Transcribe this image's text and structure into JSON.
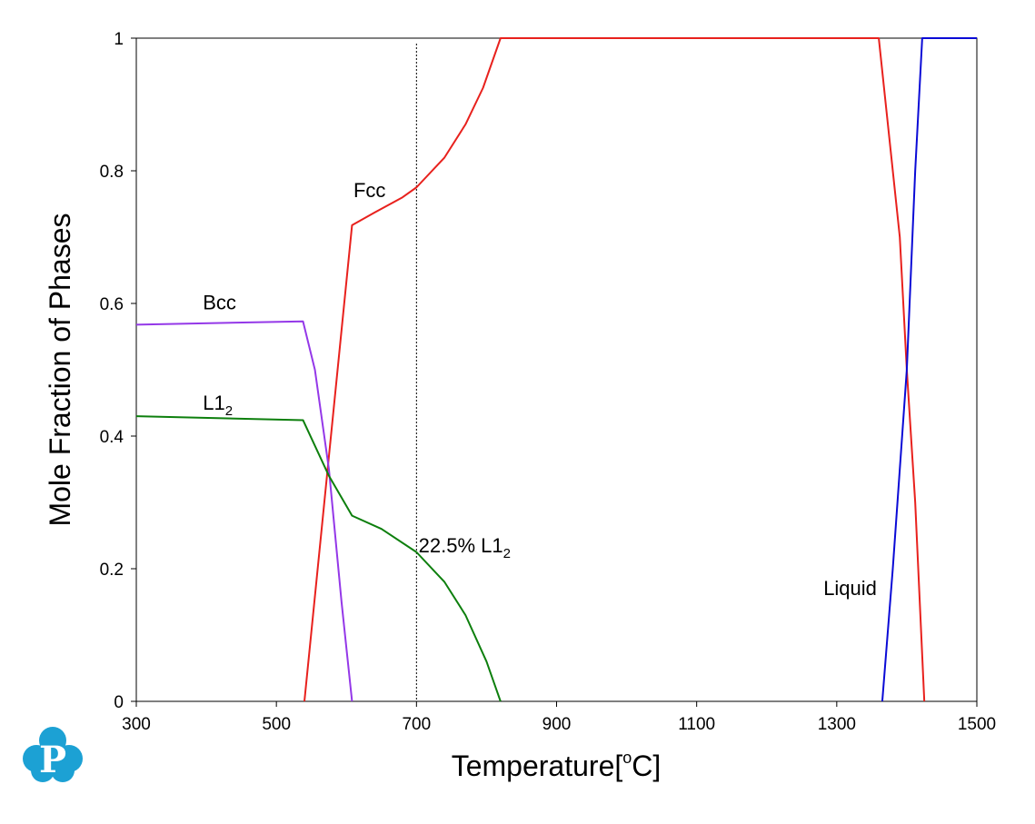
{
  "chart_data": {
    "type": "line",
    "title": "",
    "xlabel": "Temperature[°C]",
    "xlabel_parts": {
      "main": "Temperature[",
      "sup": "o",
      "end": "C]"
    },
    "ylabel": "Mole Fraction of Phases",
    "xlim": [
      300,
      1500
    ],
    "ylim": [
      0,
      1
    ],
    "x_ticks": [
      300,
      500,
      700,
      900,
      1100,
      1300,
      1500
    ],
    "x_tick_labels": [
      "300",
      "500",
      "700",
      "900",
      "1100",
      "1300",
      "1500"
    ],
    "y_ticks": [
      0,
      0.2,
      0.4,
      0.6,
      0.8,
      1
    ],
    "y_tick_labels": [
      "0",
      "0.2",
      "0.4",
      "0.6",
      "0.8",
      "1"
    ],
    "grid": false,
    "series": [
      {
        "name": "Fcc",
        "color": "#e8211d",
        "points": [
          [
            540,
            0
          ],
          [
            608,
            0.718
          ],
          [
            640,
            0.737
          ],
          [
            680,
            0.76
          ],
          [
            700,
            0.775
          ],
          [
            740,
            0.82
          ],
          [
            770,
            0.87
          ],
          [
            795,
            0.925
          ],
          [
            820,
            1.0
          ],
          [
            1360,
            1.0
          ],
          [
            1375,
            0.85
          ],
          [
            1390,
            0.7
          ],
          [
            1400,
            0.5
          ],
          [
            1412,
            0.3
          ],
          [
            1425,
            0
          ]
        ]
      },
      {
        "name": "Bcc",
        "color": "#9438e8",
        "points": [
          [
            300,
            0.568
          ],
          [
            538,
            0.573
          ],
          [
            555,
            0.5
          ],
          [
            575,
            0.35
          ],
          [
            593,
            0.15
          ],
          [
            608,
            0
          ]
        ]
      },
      {
        "name": "L1",
        "name_sub": "2",
        "color": "#0d7f0d",
        "points": [
          [
            300,
            0.43
          ],
          [
            538,
            0.424
          ],
          [
            575,
            0.34
          ],
          [
            608,
            0.28
          ],
          [
            650,
            0.26
          ],
          [
            700,
            0.225
          ],
          [
            740,
            0.18
          ],
          [
            770,
            0.13
          ],
          [
            800,
            0.06
          ],
          [
            820,
            0
          ]
        ]
      },
      {
        "name": "Liquid",
        "color": "#0a0ad6",
        "points": [
          [
            1365,
            0
          ],
          [
            1380,
            0.2
          ],
          [
            1400,
            0.5
          ],
          [
            1412,
            0.8
          ],
          [
            1422,
            1.0
          ],
          [
            1500,
            1.0
          ]
        ]
      }
    ],
    "reference_lines": [
      {
        "x": 700,
        "style": "dotted",
        "color": "#000000"
      }
    ],
    "annotations": [
      {
        "text": "Fcc",
        "x": 610,
        "y": 0.76
      },
      {
        "text": "Bcc",
        "x": 395,
        "y": 0.591
      },
      {
        "text": "L1",
        "sub": "2",
        "x": 395,
        "y": 0.44
      },
      {
        "text": "22.5% L1",
        "sub": "2",
        "x": 703,
        "y": 0.225
      },
      {
        "text": "Liquid",
        "x": 1281,
        "y": 0.16
      }
    ]
  },
  "logo": {
    "name": "pandat-logo",
    "letter": "P",
    "color": "#1ca1d4"
  }
}
